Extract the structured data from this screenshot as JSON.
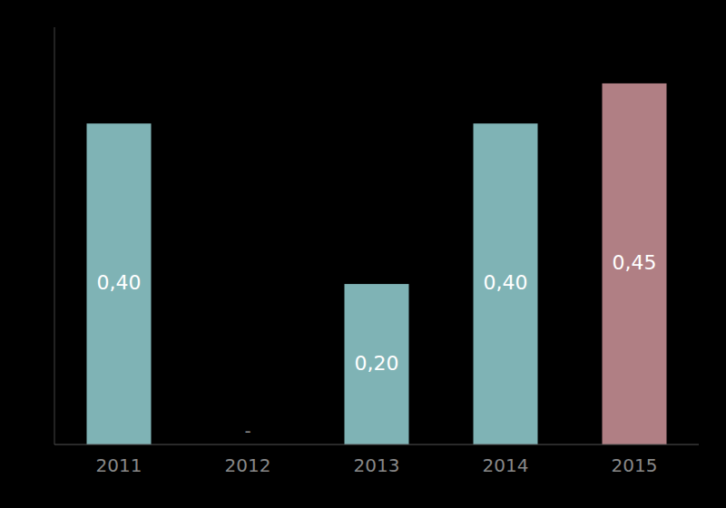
{
  "chart_data": {
    "type": "bar",
    "categories": [
      "2011",
      "2012",
      "2013",
      "2014",
      "2015"
    ],
    "values": [
      0.4,
      0.0,
      0.2,
      0.4,
      0.45
    ],
    "value_labels": [
      "0,40",
      "-",
      "0,20",
      "0,40",
      "0,45"
    ],
    "colors": [
      "#7fb3b5",
      "#000000",
      "#7fb3b5",
      "#7fb3b5",
      "#b07f84"
    ],
    "ylim": [
      0,
      0.52
    ],
    "data_labels": true,
    "tick_labels": "x",
    "grid": false
  }
}
